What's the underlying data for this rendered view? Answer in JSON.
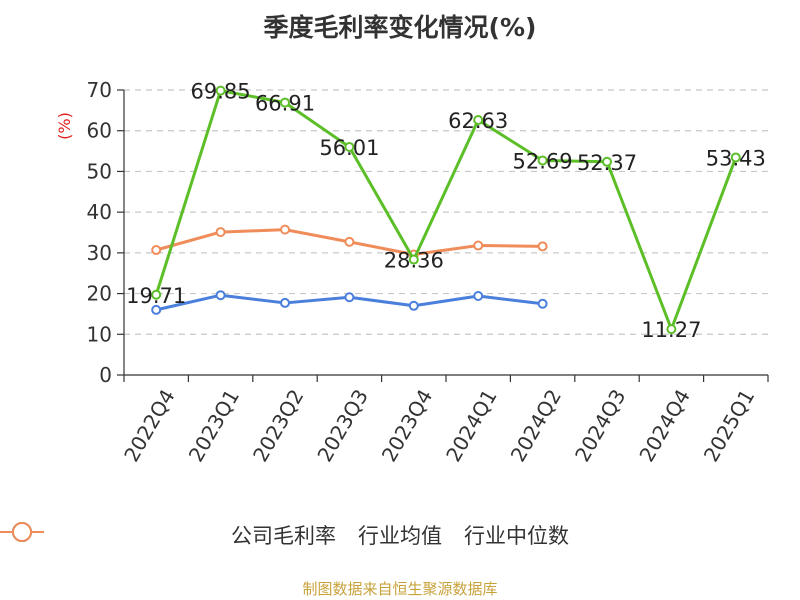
{
  "chart_data": {
    "type": "line",
    "title": "季度毛利率变化情况(%)",
    "ylabel": "(%)",
    "ylim": [
      0,
      70
    ],
    "yticks": [
      0,
      10,
      20,
      30,
      40,
      50,
      60,
      70
    ],
    "categories": [
      "2022Q4",
      "2023Q1",
      "2023Q2",
      "2023Q3",
      "2023Q4",
      "2024Q1",
      "2024Q2",
      "2024Q3",
      "2024Q4",
      "2025Q1"
    ],
    "grid": true,
    "legend_position": "bottom",
    "series": [
      {
        "name": "公司毛利率",
        "color": "#5cbf28",
        "values": [
          19.71,
          69.85,
          66.91,
          56.01,
          28.36,
          62.63,
          52.69,
          52.37,
          11.27,
          53.43
        ],
        "labels": true
      },
      {
        "name": "行业均值",
        "color": "#4a7fdc",
        "values": [
          16.0,
          19.6,
          17.7,
          19.1,
          17.0,
          19.4,
          17.5,
          null,
          null,
          null
        ],
        "labels": false
      },
      {
        "name": "行业中位数",
        "color": "#f08c5a",
        "values": [
          30.7,
          35.1,
          35.7,
          32.7,
          29.6,
          31.8,
          31.6,
          null,
          null,
          null
        ],
        "labels": false
      }
    ]
  },
  "source": "制图数据来自恒生聚源数据库"
}
